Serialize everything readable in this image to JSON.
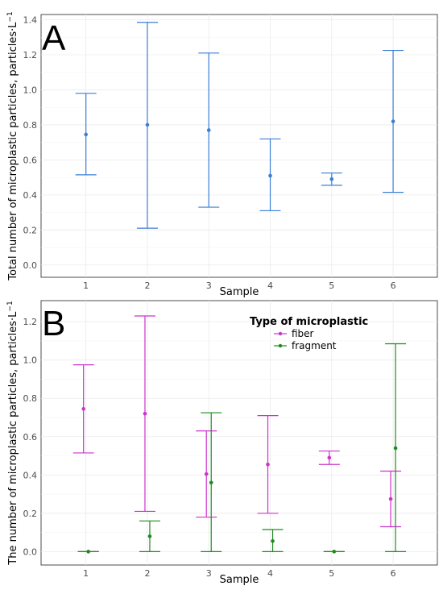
{
  "chart_data": [
    {
      "type": "errorbar",
      "panel_label": "A",
      "xlabel": "Sample",
      "ylabel": "Total number of microplastic particles, particles·L",
      "ylabel_sup": "−1",
      "categories": [
        "1",
        "2",
        "3",
        "4",
        "5",
        "6"
      ],
      "yticks": [
        "0.0",
        "0.2",
        "0.4",
        "0.6",
        "0.8",
        "1.0",
        "1.2",
        "1.4"
      ],
      "ylim": [
        -0.07,
        1.43
      ],
      "grid": true,
      "colors": {
        "point": "#3a7fd5"
      },
      "series": [
        {
          "values": [
            0.745,
            0.8,
            0.77,
            0.51,
            0.49,
            0.82
          ],
          "lower": [
            0.515,
            0.21,
            0.33,
            0.31,
            0.455,
            0.415
          ],
          "upper": [
            0.98,
            1.385,
            1.21,
            0.72,
            0.525,
            1.225
          ]
        }
      ]
    },
    {
      "type": "errorbar",
      "panel_label": "B",
      "xlabel": "Sample",
      "ylabel": "The number of microplastic particles, particles·L",
      "ylabel_sup": "−1",
      "categories": [
        "1",
        "2",
        "3",
        "4",
        "5",
        "6"
      ],
      "yticks": [
        "0.0",
        "0.2",
        "0.4",
        "0.6",
        "0.8",
        "1.0",
        "1.2"
      ],
      "ylim": [
        -0.07,
        1.31
      ],
      "grid": true,
      "legend": {
        "title": "Type of microplastic",
        "position": "top-right"
      },
      "series": [
        {
          "name": "fiber",
          "color": "#cc33cc",
          "values": [
            0.745,
            0.72,
            0.405,
            0.455,
            0.49,
            0.275
          ],
          "lower": [
            0.515,
            0.21,
            0.18,
            0.2,
            0.455,
            0.13
          ],
          "upper": [
            0.975,
            1.23,
            0.63,
            0.71,
            0.525,
            0.42
          ]
        },
        {
          "name": "fragment",
          "color": "#1f8a1f",
          "values": [
            0.0,
            0.08,
            0.36,
            0.055,
            0.0,
            0.54
          ],
          "lower": [
            0.0,
            0.0,
            0.0,
            0.0,
            0.0,
            0.0
          ],
          "upper": [
            0.0,
            0.16,
            0.725,
            0.115,
            0.0,
            1.085
          ]
        }
      ]
    }
  ]
}
